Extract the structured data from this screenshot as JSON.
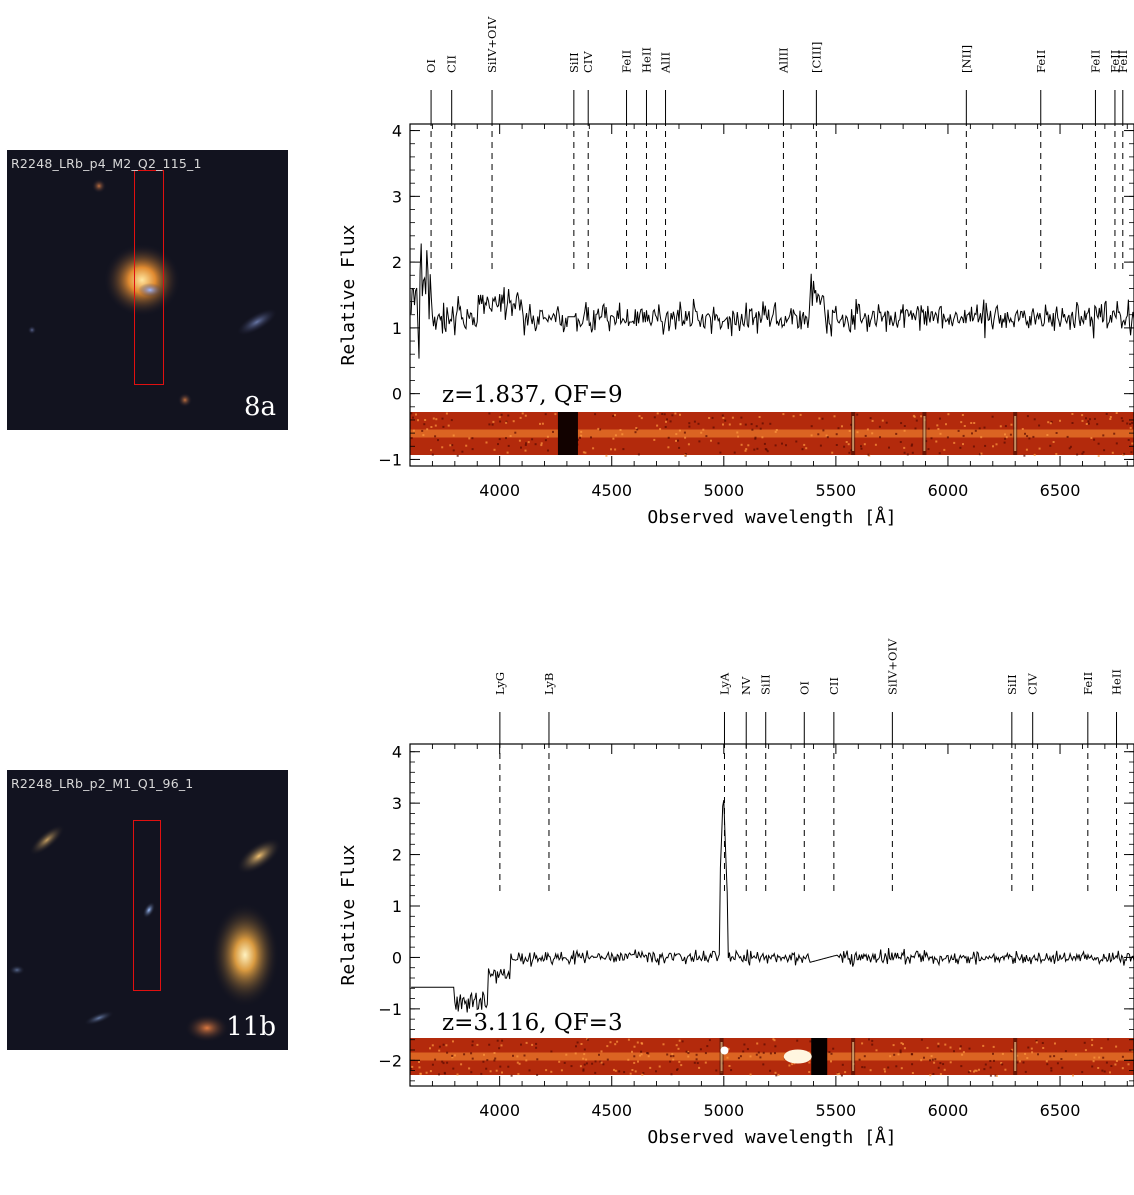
{
  "chart_data": [
    {
      "type": "line",
      "thumbnail": {
        "label": "R2248_LRb_p4_M2_Q2_115_1",
        "id": "8a"
      },
      "annotation": "z=1.837, QF=9",
      "xlabel": "Observed wavelength [Å]",
      "ylabel": "Relative Flux",
      "xlim": [
        3600,
        6830
      ],
      "ylim": [
        -1.1,
        4.1
      ],
      "xticks": [
        4000,
        4500,
        5000,
        5500,
        6000,
        6500
      ],
      "yticks": [
        -1,
        0,
        1,
        2,
        3,
        4
      ],
      "continuum": 1.2,
      "lines": [
        {
          "name": "OI",
          "x": 3694
        },
        {
          "name": "CII",
          "x": 3786
        },
        {
          "name": "SiIV+OIV",
          "x": 3966
        },
        {
          "name": "SiII",
          "x": 4331
        },
        {
          "name": "CIV",
          "x": 4395
        },
        {
          "name": "FeII",
          "x": 4566
        },
        {
          "name": "HeII",
          "x": 4655
        },
        {
          "name": "AlII",
          "x": 4740
        },
        {
          "name": "AlIII",
          "x": 5266
        },
        {
          "name": "[CIII]",
          "x": 5413
        },
        {
          "name": "[NII]",
          "x": 6082
        },
        {
          "name": "FeII",
          "x": 6414
        },
        {
          "name": "FeII",
          "x": 6658
        },
        {
          "name": "FeII",
          "x": 6745
        },
        {
          "name": "FeII",
          "x": 6780
        }
      ]
    },
    {
      "type": "line",
      "thumbnail": {
        "label": "R2248_LRb_p2_M1_Q1_96_1",
        "id": "11b"
      },
      "annotation": "z=3.116, QF=3",
      "xlabel": "Observed wavelength [Å]",
      "ylabel": "Relative Flux",
      "xlim": [
        3600,
        6830
      ],
      "ylim": [
        -2.5,
        4.15
      ],
      "xticks": [
        4000,
        4500,
        5000,
        5500,
        6000,
        6500
      ],
      "yticks": [
        -2,
        -1,
        0,
        1,
        2,
        3,
        4
      ],
      "continuum": 0.0,
      "lines": [
        {
          "name": "LyG",
          "x": 4001
        },
        {
          "name": "LyB",
          "x": 4220
        },
        {
          "name": "LyA",
          "x": 5003
        },
        {
          "name": "NV",
          "x": 5100
        },
        {
          "name": "SiII",
          "x": 5187
        },
        {
          "name": "OI",
          "x": 5359
        },
        {
          "name": "CII",
          "x": 5491
        },
        {
          "name": "SiIV+OIV",
          "x": 5752
        },
        {
          "name": "SiII",
          "x": 6285
        },
        {
          "name": "CIV",
          "x": 6378
        },
        {
          "name": "FeII",
          "x": 6624
        },
        {
          "name": "HeII",
          "x": 6752
        }
      ]
    }
  ]
}
